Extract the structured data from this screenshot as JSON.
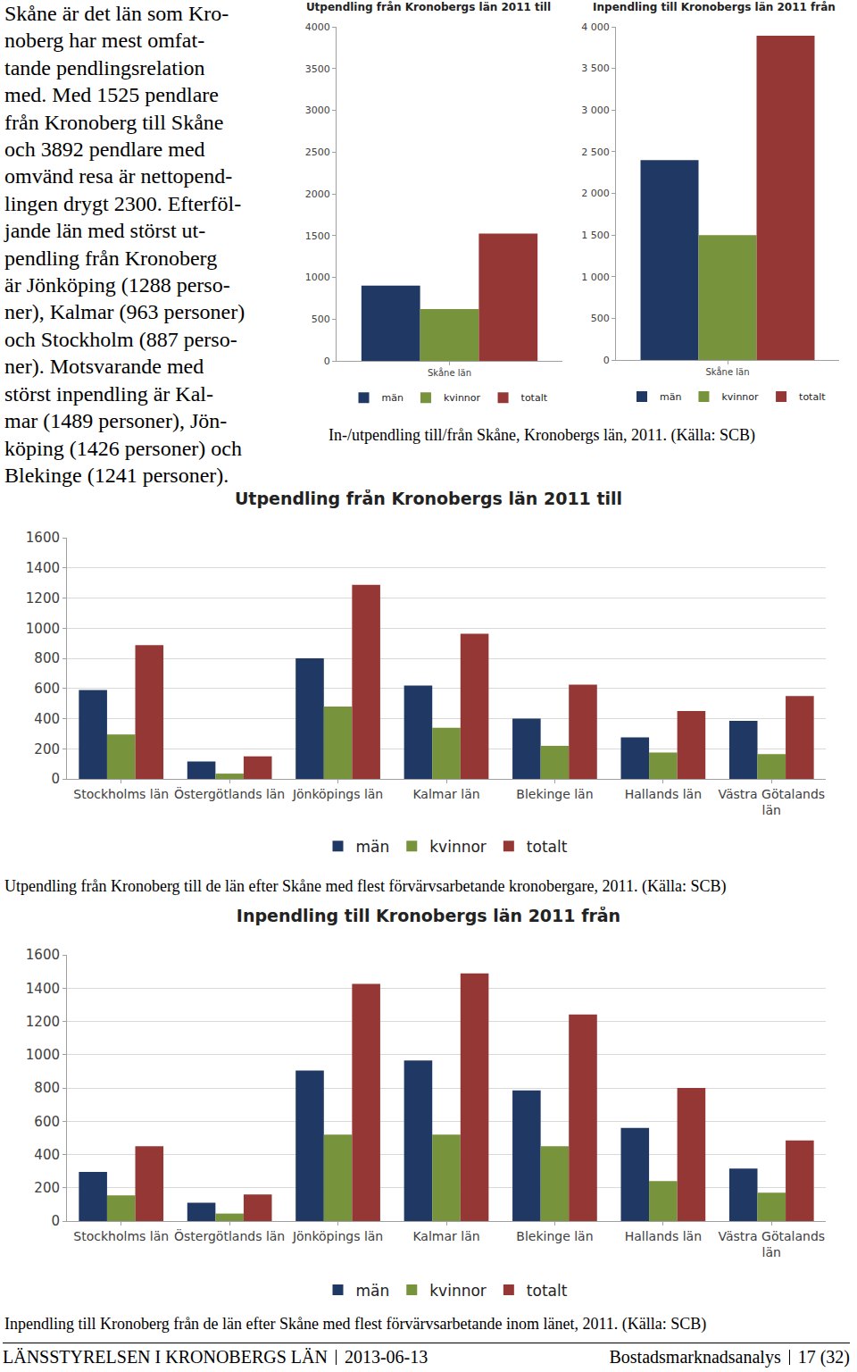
{
  "intro_lines": [
    "Skåne är det län som Kro-",
    "noberg har mest omfat-",
    "tande pendlingsrelation",
    "med. Med 1525 pendlare",
    "från Kronoberg till Skåne",
    "och 3892 pendlare med",
    "omvänd resa är nettopend-",
    "lingen drygt 2300. Efterföl-",
    "jande län med störst ut-",
    "pendling från Kronoberg",
    "är Jönköping (1288 perso-",
    "ner), Kalmar (963 personer)",
    "och Stockholm (887 perso-",
    "ner). Motsvarande med",
    "störst inpendling är Kal-",
    "mar (1489 personer), Jön-",
    "köping (1426 personer) och",
    "Blekinge (1241 personer)."
  ],
  "chart_data": [
    {
      "type": "bar",
      "title": "Utpendling från Kronobergs län 2011 till",
      "categories": [
        "Skåne län"
      ],
      "series": [
        {
          "name": "män",
          "color": "#1f3864",
          "values": [
            900
          ]
        },
        {
          "name": "kvinnor",
          "color": "#77933c",
          "values": [
            620
          ]
        },
        {
          "name": "totalt",
          "color": "#953735",
          "values": [
            1525
          ]
        }
      ],
      "ylim": [
        0,
        4000
      ],
      "yticks": [
        0,
        500,
        1000,
        1500,
        2000,
        2500,
        3000,
        3500,
        4000
      ],
      "grid": false,
      "legend": "bottom"
    },
    {
      "type": "bar",
      "title": "Inpendling till Kronobergs län 2011 från",
      "categories": [
        "Skåne län"
      ],
      "series": [
        {
          "name": "män",
          "color": "#1f3864",
          "values": [
            2400
          ]
        },
        {
          "name": "kvinnor",
          "color": "#77933c",
          "values": [
            1500
          ]
        },
        {
          "name": "totalt",
          "color": "#953735",
          "values": [
            3892
          ]
        }
      ],
      "ylim": [
        0,
        4000
      ],
      "yticks": [
        0,
        500,
        {
          "value": 1000,
          "label": "1 000"
        },
        {
          "value": 1500,
          "label": "1 500"
        },
        {
          "value": 2000,
          "label": "2 000"
        },
        {
          "value": 2500,
          "label": "2 500"
        },
        {
          "value": 3000,
          "label": "3 000"
        },
        {
          "value": 3500,
          "label": "3 500"
        },
        {
          "value": 4000,
          "label": "4 000"
        }
      ],
      "grid": false,
      "legend": "bottom"
    },
    {
      "type": "bar",
      "title": "Utpendling från Kronobergs län 2011 till",
      "categories": [
        "Stockholms län",
        "Östergötlands län",
        "Jönköpings län",
        "Kalmar län",
        "Blekinge län",
        "Hallands län",
        "Västra Götalands län"
      ],
      "series": [
        {
          "name": "män",
          "color": "#1f3864",
          "values": [
            590,
            115,
            800,
            620,
            400,
            275,
            385
          ]
        },
        {
          "name": "kvinnor",
          "color": "#77933c",
          "values": [
            295,
            35,
            480,
            340,
            220,
            175,
            165
          ]
        },
        {
          "name": "totalt",
          "color": "#953735",
          "values": [
            887,
            150,
            1288,
            963,
            625,
            450,
            550
          ]
        }
      ],
      "ylim": [
        0,
        1600
      ],
      "yticks": [
        0,
        200,
        400,
        600,
        800,
        1000,
        1200,
        1400,
        1600
      ],
      "grid": true,
      "legend": "bottom"
    },
    {
      "type": "bar",
      "title": "Inpendling till Kronobergs län 2011 från",
      "categories": [
        "Stockholms län",
        "Östergötlands län",
        "Jönköpings län",
        "Kalmar län",
        "Blekinge län",
        "Hallands län",
        "Västra Götalands län"
      ],
      "series": [
        {
          "name": "män",
          "color": "#1f3864",
          "values": [
            295,
            110,
            905,
            965,
            785,
            560,
            315
          ]
        },
        {
          "name": "kvinnor",
          "color": "#77933c",
          "values": [
            155,
            45,
            520,
            520,
            450,
            240,
            170
          ]
        },
        {
          "name": "totalt",
          "color": "#953735",
          "values": [
            450,
            160,
            1426,
            1489,
            1241,
            800,
            485
          ]
        }
      ],
      "ylim": [
        0,
        1600
      ],
      "yticks": [
        0,
        200,
        400,
        600,
        800,
        1000,
        1200,
        1400,
        1600
      ],
      "grid": true,
      "legend": "bottom"
    }
  ],
  "captions": [
    "In-/utpendling till/från Skåne, Kronobergs län, 2011. (Källa: SCB)",
    "Utpendling från Kronoberg till de län efter Skåne med flest förvärvsarbetande kronobergare, 2011. (Källa: SCB)",
    "Inpendling till Kronoberg från de län efter Skåne med flest förvärvsarbetande inom länet, 2011. (Källa: SCB)"
  ],
  "footer": {
    "organisation": "LÄNSSTYRELSEN I KRONOBERGS LÄN",
    "date": "2013-06-13",
    "report": "Bostadsmarknadsanalys",
    "page": "17 (32)"
  }
}
